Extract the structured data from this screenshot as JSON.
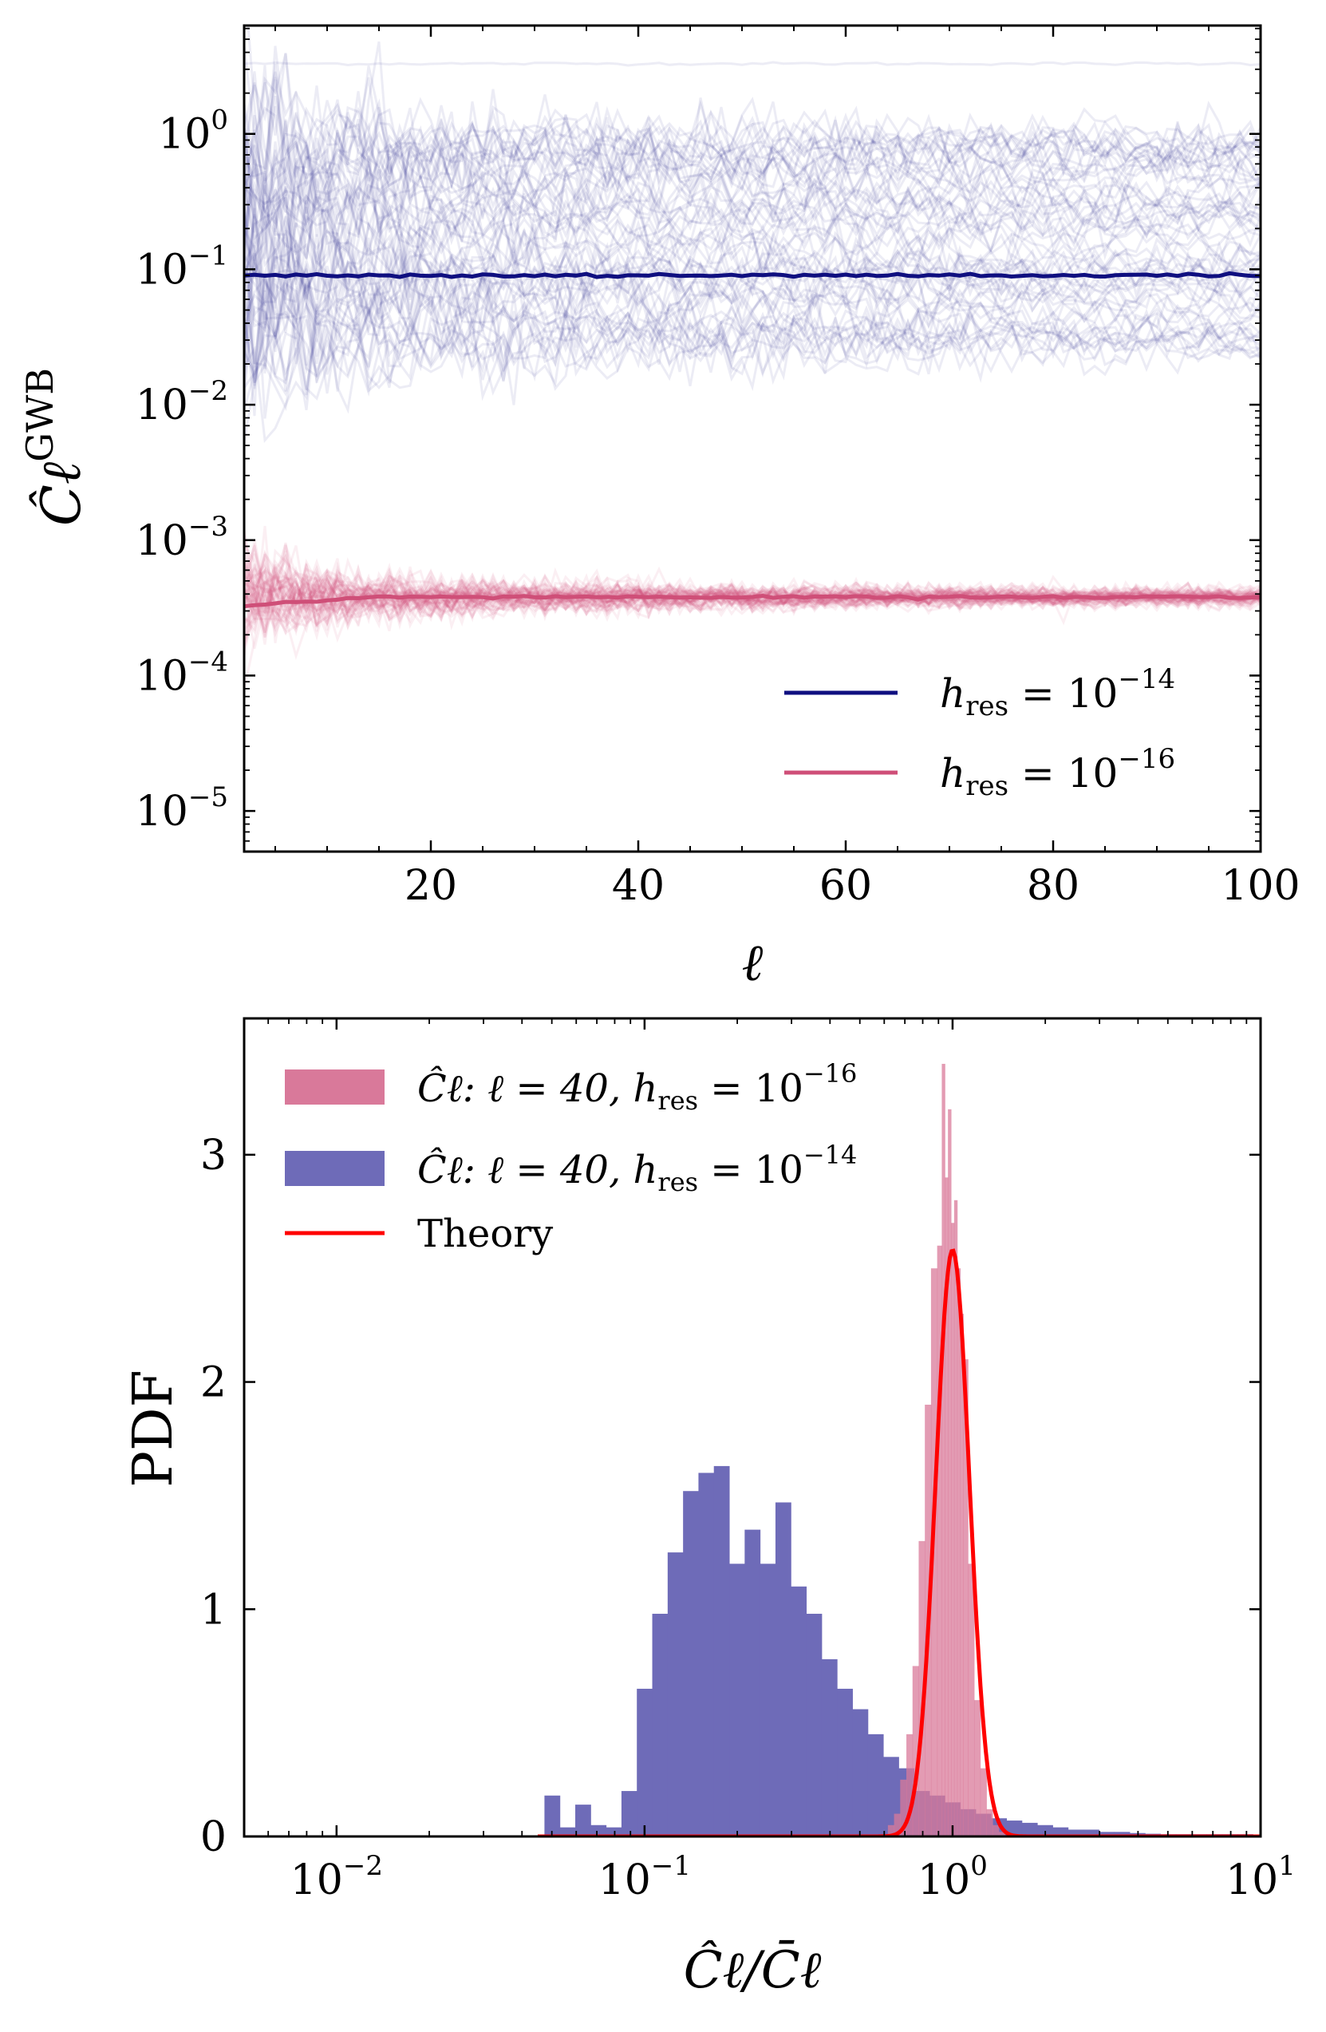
{
  "chart_data": [
    {
      "type": "line",
      "xlabel": "ℓ",
      "ylabel": "Ĉℓ",
      "ylabel_sup": "GWB",
      "xlim": [
        2,
        100
      ],
      "ylim_log10": [
        -5.3,
        0.8
      ],
      "yscale": "log",
      "xticks": [
        20,
        40,
        60,
        80,
        100
      ],
      "xtick_labels": [
        "20",
        "40",
        "60",
        "80",
        "100"
      ],
      "yticks": [
        -5,
        -4,
        -3,
        -2,
        -1,
        0
      ],
      "ytick_labels": [
        "10",
        "10",
        "10",
        "10",
        "10",
        "10"
      ],
      "ytick_exps": [
        "−5",
        "−4",
        "−3",
        "−2",
        "−1",
        "0"
      ],
      "series": [
        {
          "name": "hres = 10^-14",
          "legend_main": "h",
          "legend_sub": "res",
          "legend_eq": " = 10",
          "legend_exp": "−14",
          "color": "#0f0f80",
          "mean_value": 0.09,
          "realization_range": [
            0.02,
            3.3
          ],
          "n_realizations": 70
        },
        {
          "name": "hres = 10^-16",
          "legend_main": "h",
          "legend_sub": "res",
          "legend_eq": " = 10",
          "legend_exp": "−16",
          "color": "#cf4f78",
          "mean_value": 0.00038,
          "realization_range": [
            5e-05,
            0.001
          ],
          "n_realizations": 60
        }
      ],
      "legend_position": "lower-right"
    },
    {
      "type": "histogram",
      "xlabel": "Ĉℓ/C̄ℓ",
      "ylabel": "PDF",
      "xscale": "log",
      "xlim_log10": [
        -2.3,
        1
      ],
      "ylim": [
        0,
        3.6
      ],
      "xticks": [
        -2,
        -1,
        0,
        1
      ],
      "xtick_labels": [
        "10",
        "10",
        "10",
        "10"
      ],
      "xtick_exps": [
        "−2",
        "−1",
        "0",
        "1"
      ],
      "yticks": [
        0,
        1,
        2,
        3
      ],
      "ytick_labels": [
        "0",
        "1",
        "2",
        "3"
      ],
      "series": [
        {
          "name": "Ĉℓ: ℓ = 40, hres = 10^-16",
          "legend_text": "Ĉℓ: ℓ = 40, h",
          "legend_sub": "res",
          "legend_eq": " = 10",
          "legend_exp": "−16",
          "color": "#d9799a",
          "bin_centers_log10": [
            -0.2,
            -0.18,
            -0.16,
            -0.14,
            -0.12,
            -0.1,
            -0.08,
            -0.06,
            -0.04,
            -0.03,
            -0.02,
            -0.01,
            0.0,
            0.01,
            0.02,
            0.03,
            0.04,
            0.06,
            0.08,
            0.1,
            0.12,
            0.14,
            0.16
          ],
          "values": [
            0.05,
            0.1,
            0.25,
            0.45,
            0.75,
            1.3,
            1.9,
            2.5,
            2.6,
            3.4,
            2.9,
            3.2,
            2.7,
            2.8,
            2.5,
            2.3,
            2.1,
            1.2,
            0.6,
            0.3,
            0.12,
            0.05,
            0.02
          ]
        },
        {
          "name": "Ĉℓ: ℓ = 40, hres = 10^-14",
          "legend_text": "Ĉℓ: ℓ = 40, h",
          "legend_sub": "res",
          "legend_eq": " = 10",
          "legend_exp": "−14",
          "color": "#6e6bb8",
          "bin_width_log10": 0.05,
          "bin_centers_log10": [
            -1.3,
            -1.25,
            -1.2,
            -1.15,
            -1.1,
            -1.05,
            -1.0,
            -0.95,
            -0.9,
            -0.85,
            -0.8,
            -0.75,
            -0.7,
            -0.65,
            -0.6,
            -0.55,
            -0.5,
            -0.45,
            -0.4,
            -0.35,
            -0.3,
            -0.25,
            -0.2,
            -0.15,
            -0.1,
            -0.05,
            0.0,
            0.05,
            0.1,
            0.15,
            0.2,
            0.25,
            0.3,
            0.35,
            0.4,
            0.45,
            0.5,
            0.55,
            0.6,
            0.65,
            0.7,
            0.75,
            0.8,
            0.85,
            0.9,
            0.95
          ],
          "values": [
            0.18,
            0.04,
            0.14,
            0.05,
            0.04,
            0.2,
            0.65,
            0.98,
            1.25,
            1.52,
            1.6,
            1.63,
            1.2,
            1.35,
            1.2,
            1.47,
            1.1,
            0.98,
            0.78,
            0.65,
            0.56,
            0.45,
            0.35,
            0.3,
            0.2,
            0.18,
            0.15,
            0.12,
            0.1,
            0.08,
            0.07,
            0.06,
            0.05,
            0.04,
            0.03,
            0.03,
            0.02,
            0.02,
            0.015,
            0.012,
            0.01,
            0.01,
            0.01,
            0.01,
            0.01,
            0.01
          ]
        },
        {
          "name": "Theory",
          "legend_text": "Theory",
          "color": "#ff0000",
          "peak_x": 1.0,
          "peak_value": 2.58,
          "sigma_log10": 0.055,
          "x_range": [
            0.045,
            10
          ]
        }
      ],
      "legend_position": "top-left"
    }
  ]
}
